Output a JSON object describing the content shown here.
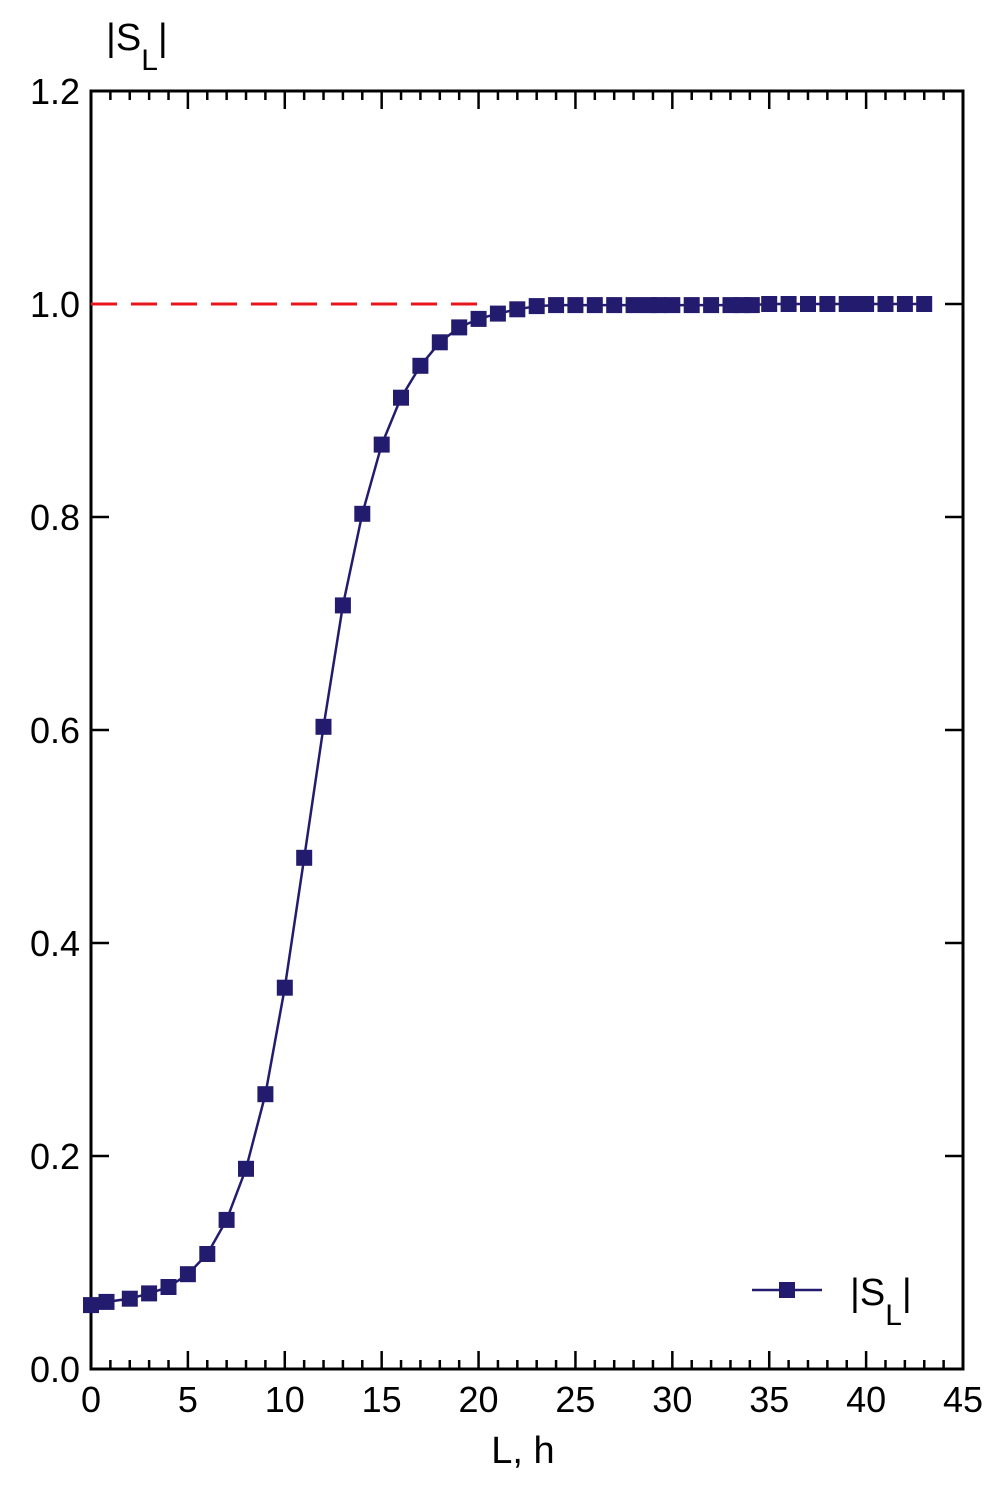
{
  "chart_data": {
    "type": "line",
    "title": "",
    "xlabel": "L, h",
    "ylabel": {
      "main": "|S",
      "sub": "L",
      "suffix": "|"
    },
    "xlim": [
      0,
      45
    ],
    "ylim": [
      0.0,
      1.2
    ],
    "xticks": [
      0,
      5,
      10,
      15,
      20,
      25,
      30,
      35,
      40,
      45
    ],
    "yticks": [
      "0.0",
      "0.2",
      "0.4",
      "0.6",
      "0.8",
      "1.0",
      "1.2"
    ],
    "grid": false,
    "legend_position": "bottom-right",
    "reference_line": {
      "y": 1.0,
      "color": "#e8141c",
      "style": "dashed",
      "x_end": 20.5
    },
    "series": [
      {
        "name": {
          "main": "|S",
          "sub": "L",
          "suffix": "|"
        },
        "color": "#231c6e",
        "marker": "square",
        "points": [
          [
            0,
            0.06
          ],
          [
            0.8,
            0.063
          ],
          [
            2,
            0.066
          ],
          [
            3,
            0.071
          ],
          [
            4,
            0.077
          ],
          [
            5,
            0.089
          ],
          [
            6,
            0.108
          ],
          [
            7,
            0.14
          ],
          [
            8,
            0.188
          ],
          [
            9,
            0.258
          ],
          [
            10,
            0.358
          ],
          [
            11,
            0.48
          ],
          [
            12,
            0.603
          ],
          [
            13,
            0.717
          ],
          [
            14,
            0.803
          ],
          [
            15,
            0.868
          ],
          [
            16,
            0.912
          ],
          [
            17,
            0.942
          ],
          [
            18,
            0.964
          ],
          [
            19,
            0.978
          ],
          [
            20,
            0.986
          ],
          [
            21,
            0.991
          ],
          [
            22,
            0.995
          ],
          [
            23,
            0.998
          ],
          [
            24,
            0.999
          ],
          [
            25,
            0.999
          ],
          [
            26,
            0.999
          ],
          [
            27,
            0.999
          ],
          [
            28,
            0.999
          ],
          [
            28.8,
            0.999
          ],
          [
            29.3,
            0.999
          ],
          [
            30,
            0.999
          ],
          [
            31,
            0.999
          ],
          [
            32,
            0.999
          ],
          [
            33,
            0.999
          ],
          [
            33.6,
            0.999
          ],
          [
            34.1,
            0.999
          ],
          [
            35,
            1.0
          ],
          [
            36,
            1.0
          ],
          [
            37,
            1.0
          ],
          [
            38,
            1.0
          ],
          [
            39,
            1.0
          ],
          [
            39.5,
            1.0
          ],
          [
            40,
            1.0
          ],
          [
            41,
            1.0
          ],
          [
            42,
            1.0
          ],
          [
            43,
            1.0
          ]
        ]
      }
    ]
  }
}
